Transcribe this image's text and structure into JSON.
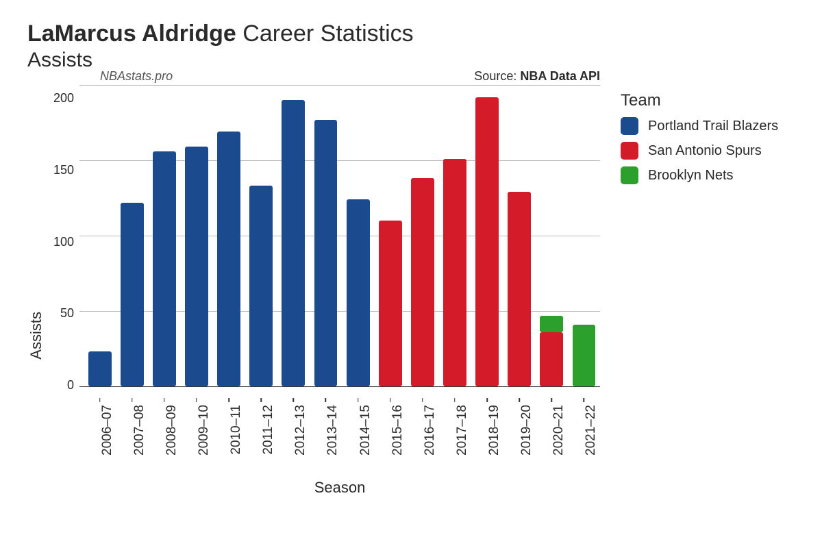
{
  "title": {
    "player_name": "LaMarcus Aldridge",
    "suffix": "Career Statistics",
    "stat": "Assists"
  },
  "annotations": {
    "watermark": "NBAstats.pro",
    "source_prefix": "Source:",
    "source_name": "NBA Data API"
  },
  "chart": {
    "type": "bar",
    "x_label": "Season",
    "y_label": "Assists",
    "ylim": [
      0,
      200
    ],
    "ytick_step": 50,
    "yticks": [
      200,
      150,
      100,
      50,
      0
    ],
    "background_color": "#ffffff",
    "grid_color": "#b8b8b8",
    "bar_width_ratio": 0.72,
    "bar_border_radius": 3,
    "axis_color": "#333333",
    "tick_fontsize": 18,
    "label_fontsize": 22,
    "seasons": [
      {
        "label": "2006–07",
        "segments": [
          {
            "team": "por",
            "value": 23
          }
        ]
      },
      {
        "label": "2007–08",
        "segments": [
          {
            "team": "por",
            "value": 122
          }
        ]
      },
      {
        "label": "2008–09",
        "segments": [
          {
            "team": "por",
            "value": 156
          }
        ]
      },
      {
        "label": "2009–10",
        "segments": [
          {
            "team": "por",
            "value": 159
          }
        ]
      },
      {
        "label": "2010–11",
        "segments": [
          {
            "team": "por",
            "value": 169
          }
        ]
      },
      {
        "label": "2011–12",
        "segments": [
          {
            "team": "por",
            "value": 133
          }
        ]
      },
      {
        "label": "2012–13",
        "segments": [
          {
            "team": "por",
            "value": 190
          }
        ]
      },
      {
        "label": "2013–14",
        "segments": [
          {
            "team": "por",
            "value": 177
          }
        ]
      },
      {
        "label": "2014–15",
        "segments": [
          {
            "team": "por",
            "value": 124
          }
        ]
      },
      {
        "label": "2015–16",
        "segments": [
          {
            "team": "sas",
            "value": 110
          }
        ]
      },
      {
        "label": "2016–17",
        "segments": [
          {
            "team": "sas",
            "value": 138
          }
        ]
      },
      {
        "label": "2017–18",
        "segments": [
          {
            "team": "sas",
            "value": 151
          }
        ]
      },
      {
        "label": "2018–19",
        "segments": [
          {
            "team": "sas",
            "value": 192
          }
        ]
      },
      {
        "label": "2019–20",
        "segments": [
          {
            "team": "sas",
            "value": 129
          }
        ]
      },
      {
        "label": "2020–21",
        "segments": [
          {
            "team": "sas",
            "value": 36
          },
          {
            "team": "bkn",
            "value": 11
          }
        ]
      },
      {
        "label": "2021–22",
        "segments": [
          {
            "team": "bkn",
            "value": 41
          }
        ]
      }
    ]
  },
  "legend": {
    "title": "Team",
    "items": [
      {
        "key": "por",
        "label": "Portland Trail Blazers"
      },
      {
        "key": "sas",
        "label": "San Antonio Spurs"
      },
      {
        "key": "bkn",
        "label": "Brooklyn Nets"
      }
    ]
  },
  "team_colors": {
    "por": "#1b4a8f",
    "sas": "#d31b2a",
    "bkn": "#2ca02c"
  }
}
